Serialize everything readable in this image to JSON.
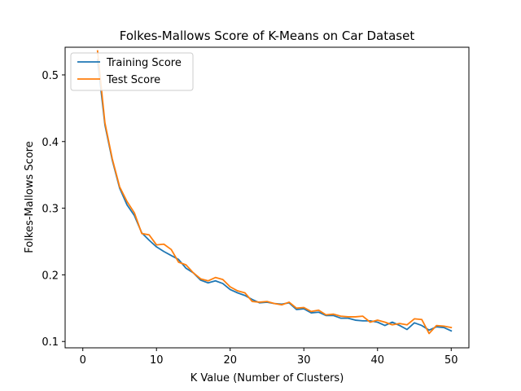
{
  "chart_data": {
    "type": "line",
    "title": "Folkes-Mallows Score of K-Means on Car Dataset",
    "xlabel": "K Value (Number of Clusters)",
    "ylabel": "Folkes-Mallows Score",
    "xlim": [
      -2.4,
      52.4
    ],
    "ylim": [
      0.0905,
      0.5415
    ],
    "xticks": [
      0,
      10,
      20,
      30,
      40,
      50
    ],
    "yticks": [
      0.1,
      0.2,
      0.3,
      0.4,
      0.5
    ],
    "grid": false,
    "legend_position": "upper-left",
    "x": [
      2,
      3,
      4,
      5,
      6,
      7,
      8,
      9,
      10,
      11,
      12,
      13,
      14,
      15,
      16,
      17,
      18,
      19,
      20,
      21,
      22,
      23,
      24,
      25,
      26,
      27,
      28,
      29,
      30,
      31,
      32,
      33,
      34,
      35,
      36,
      37,
      38,
      39,
      40,
      41,
      42,
      43,
      44,
      45,
      46,
      47,
      48,
      49,
      50
    ],
    "series": [
      {
        "name": "Training Score",
        "color": "#1f77b4",
        "values": [
          0.523,
          0.425,
          0.372,
          0.33,
          0.305,
          0.289,
          0.263,
          0.252,
          0.242,
          0.235,
          0.229,
          0.223,
          0.21,
          0.203,
          0.192,
          0.188,
          0.191,
          0.187,
          0.178,
          0.173,
          0.169,
          0.163,
          0.158,
          0.159,
          0.157,
          0.156,
          0.158,
          0.148,
          0.149,
          0.143,
          0.144,
          0.139,
          0.139,
          0.135,
          0.135,
          0.132,
          0.131,
          0.131,
          0.129,
          0.124,
          0.129,
          0.124,
          0.118,
          0.128,
          0.124,
          0.117,
          0.122,
          0.121,
          0.116
        ]
      },
      {
        "name": "Test Score",
        "color": "#ff7f0e",
        "values": [
          0.536,
          0.428,
          0.374,
          0.332,
          0.31,
          0.293,
          0.262,
          0.26,
          0.245,
          0.246,
          0.238,
          0.219,
          0.215,
          0.203,
          0.194,
          0.191,
          0.196,
          0.193,
          0.182,
          0.176,
          0.173,
          0.16,
          0.159,
          0.16,
          0.157,
          0.155,
          0.159,
          0.15,
          0.151,
          0.145,
          0.147,
          0.14,
          0.141,
          0.138,
          0.137,
          0.137,
          0.138,
          0.129,
          0.132,
          0.129,
          0.125,
          0.127,
          0.125,
          0.134,
          0.133,
          0.112,
          0.124,
          0.123,
          0.121
        ]
      }
    ]
  }
}
